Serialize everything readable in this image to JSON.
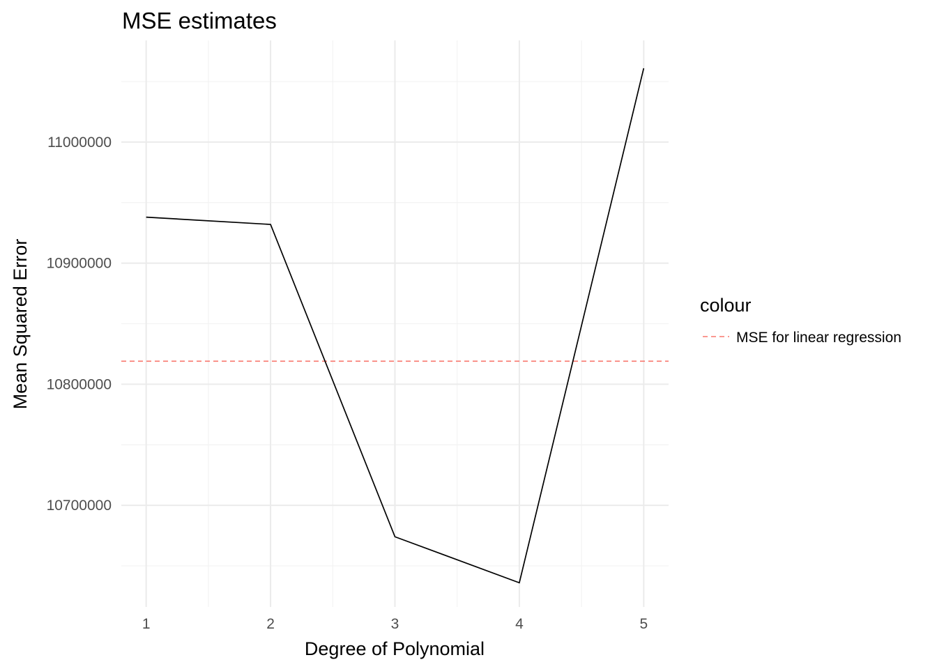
{
  "chart_data": {
    "type": "line",
    "title": "MSE estimates",
    "xlabel": "Degree of Polynomial",
    "ylabel": "Mean Squared Error",
    "x": [
      1,
      2,
      3,
      4,
      5
    ],
    "xticks": [
      "1",
      "2",
      "3",
      "4",
      "5"
    ],
    "xlim": [
      0.8,
      5.2
    ],
    "series": [
      {
        "values": [
          10938000,
          10932000,
          10674000,
          10636000,
          11061000
        ],
        "color": "#000000"
      }
    ],
    "hline": {
      "name": "MSE for linear regression",
      "value": 10819000,
      "color": "#f8766d",
      "linetype": "dashed"
    },
    "ylim": [
      10616000,
      11084000
    ],
    "yticks": [
      10700000,
      10800000,
      10900000,
      11000000
    ],
    "ytick_labels": [
      "10700000",
      "10800000",
      "10900000",
      "11000000"
    ],
    "legend": {
      "title": "colour",
      "position": "right"
    },
    "grid": true
  }
}
